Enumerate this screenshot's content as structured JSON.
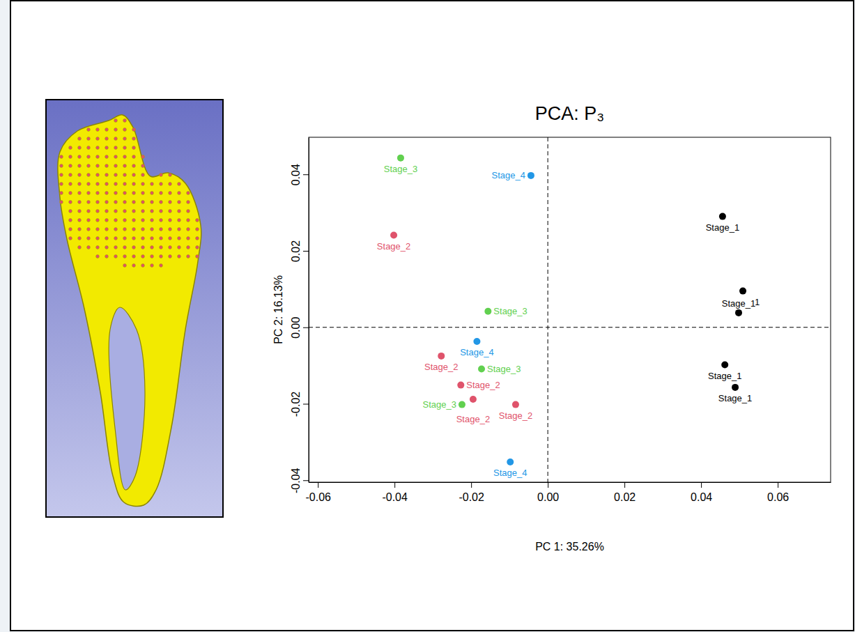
{
  "chart_data": {
    "type": "scatter",
    "title": "PCA: P₃",
    "x_label": "PC 1: 35.26%",
    "y_label": "PC 2: 16.13%",
    "xlim": [
      -0.0624,
      0.0738
    ],
    "ylim": [
      -0.0405,
      0.0497
    ],
    "xticks": [
      -0.06,
      -0.04,
      -0.02,
      {
        "value": 0,
        "label": "0.00"
      },
      0.02,
      0.04,
      0.06
    ],
    "yticks": [
      -0.04,
      -0.02,
      {
        "value": 0,
        "label": "0.00"
      },
      0.02,
      0.04
    ],
    "reference_lines": {
      "x": [
        0
      ],
      "y": [
        0
      ]
    },
    "marker": "circle",
    "data_labels": true,
    "series": [
      {
        "name": "Stage_1",
        "color": "#000000",
        "x": [
          0.0456,
          0.0509,
          0.0498,
          0.0462,
          0.0489
        ],
        "values": [
          0.029,
          0.0095,
          0.0038,
          -0.0098,
          -0.0157
        ]
      },
      {
        "name": "Stage_2",
        "color": "#DF536B",
        "x": [
          -0.0402,
          -0.0278,
          -0.0227,
          -0.0195,
          -0.0084
        ],
        "values": [
          0.0241,
          -0.0075,
          -0.0151,
          -0.0188,
          -0.0202
        ]
      },
      {
        "name": "Stage_3",
        "color": "#61D04F",
        "x": [
          -0.0384,
          -0.0156,
          -0.0173,
          -0.0224
        ],
        "values": [
          0.0443,
          0.0042,
          -0.0109,
          -0.0202
        ]
      },
      {
        "name": "Stage_4",
        "color": "#2297E6",
        "x": [
          -0.0044,
          -0.0185,
          -0.0098
        ],
        "values": [
          0.0397,
          -0.0037,
          -0.0352
        ]
      }
    ]
  }
}
